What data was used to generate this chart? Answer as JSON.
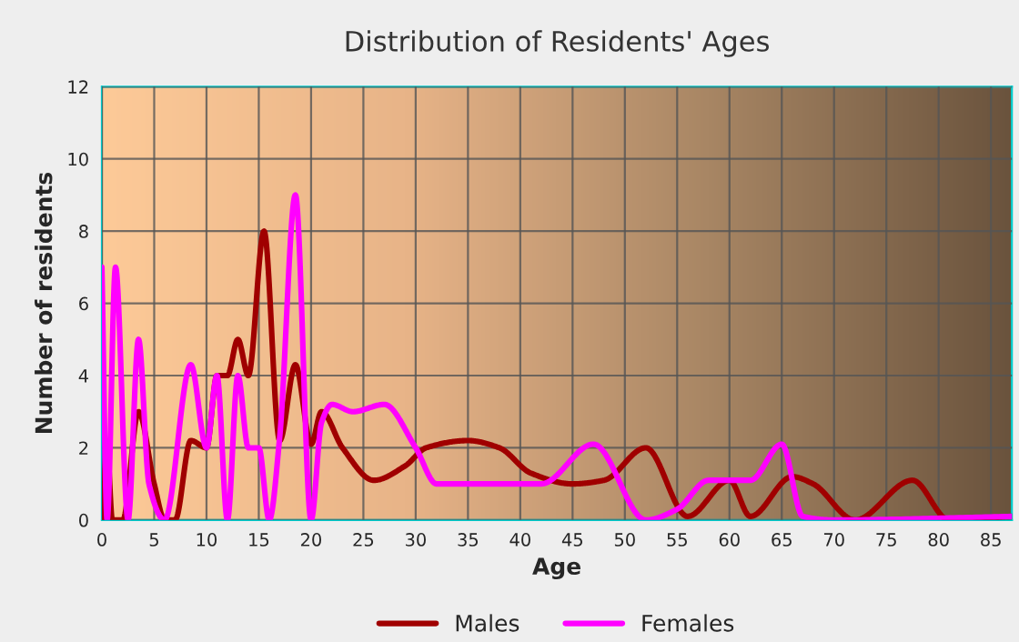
{
  "chart_data": {
    "type": "line",
    "title": "Distribution of Residents' Ages",
    "xlabel": "Age",
    "ylabel": "Number of residents",
    "xlim": [
      0,
      87
    ],
    "xticks": [
      0,
      5,
      10,
      15,
      20,
      25,
      30,
      35,
      40,
      45,
      50,
      55,
      60,
      65,
      70,
      75,
      80,
      85
    ],
    "ylim": [
      0,
      12
    ],
    "yticks": [
      0,
      2,
      4,
      6,
      8,
      10,
      12
    ],
    "grid": true,
    "legend": "bottom",
    "marker": "none",
    "line_style": "solid",
    "series": [
      {
        "name": "Males",
        "color": "#a00000",
        "x": [
          0,
          0.5,
          1,
          2,
          3.5,
          5,
          6,
          7,
          8.5,
          10,
          11,
          12,
          13,
          14,
          15.5,
          17,
          18.5,
          20,
          21,
          23,
          26,
          29,
          31,
          35,
          38,
          41,
          45,
          48,
          52,
          56,
          60,
          62,
          66,
          68,
          72,
          77.5,
          81,
          87
        ],
        "values": [
          0,
          2,
          0,
          0,
          3,
          1,
          0,
          0,
          2.2,
          2,
          4,
          4,
          5,
          4,
          8,
          2.2,
          4.3,
          2.1,
          3,
          2,
          1.1,
          1.5,
          2,
          2.2,
          2,
          1.3,
          1,
          1.1,
          2,
          0.1,
          1.1,
          0.1,
          1.2,
          1,
          0,
          1.1,
          0,
          0.1
        ]
      },
      {
        "name": "Females",
        "color": "#ff00ff",
        "x": [
          0,
          0.5,
          1.3,
          2.5,
          3.5,
          4.5,
          6,
          8.5,
          10,
          11,
          12,
          13,
          14,
          15,
          16,
          17,
          18.5,
          20,
          21,
          22,
          24,
          27,
          30,
          32,
          35,
          38,
          42,
          47,
          52,
          55,
          58,
          62,
          65,
          67,
          70,
          87
        ],
        "values": [
          7,
          0,
          7,
          0,
          5,
          1,
          0,
          4.3,
          2,
          4,
          0,
          4,
          2,
          2,
          0,
          2.3,
          9,
          0,
          2.7,
          3.2,
          3,
          3.2,
          2,
          1,
          1,
          1,
          1,
          2.1,
          0,
          0.3,
          1.1,
          1.1,
          2.1,
          0.1,
          0,
          0.1
        ]
      }
    ]
  }
}
